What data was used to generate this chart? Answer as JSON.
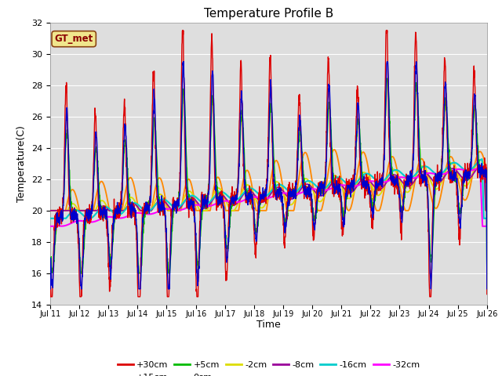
{
  "title": "Temperature Profile B",
  "xlabel": "Time",
  "ylabel": "Temperature(C)",
  "annotation": "GT_met",
  "ylim": [
    14,
    32
  ],
  "xlim": [
    0,
    15
  ],
  "x_tick_labels": [
    "Jul 11",
    "Jul 12",
    "Jul 13",
    "Jul 14",
    "Jul 15",
    "Jul 16",
    "Jul 17",
    "Jul 18",
    "Jul 19",
    "Jul 20",
    "Jul 21",
    "Jul 22",
    "Jul 23",
    "Jul 24",
    "Jul 25",
    "Jul 26"
  ],
  "series_colors": {
    "+30cm": "#dd0000",
    "+15cm": "#0000cc",
    "+5cm": "#00bb00",
    "0cm": "#ff8800",
    "-2cm": "#dddd00",
    "-8cm": "#990099",
    "-16cm": "#00cccc",
    "-32cm": "#ff00ff"
  },
  "bg_color": "#dedede",
  "grid_color": "#ffffff",
  "title_fontsize": 11,
  "axis_fontsize": 9,
  "tick_fontsize": 8
}
